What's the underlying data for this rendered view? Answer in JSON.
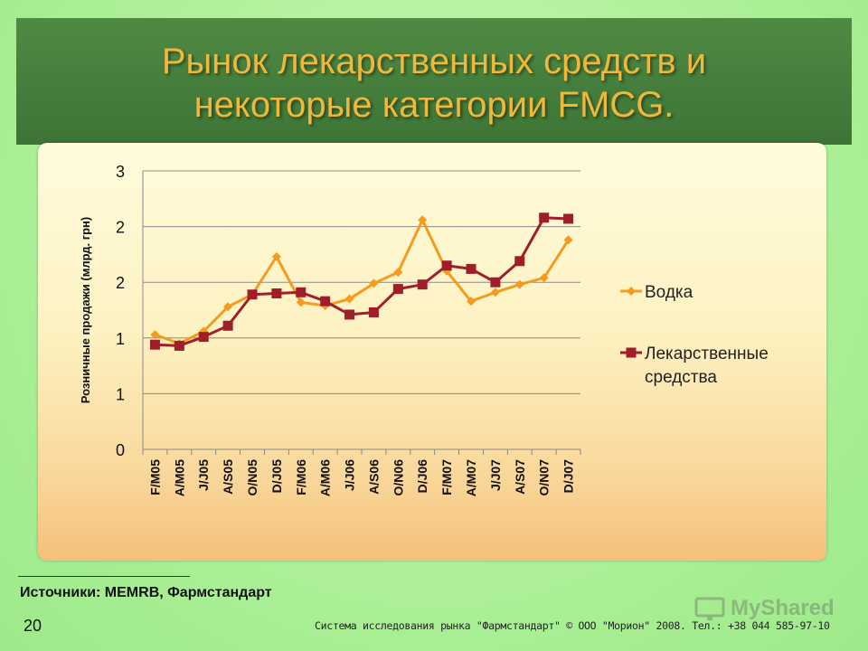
{
  "slide": {
    "title_line1": "Рынок лекарственных средств и",
    "title_line2": "некоторые категории  FMCG.",
    "source": "Источники: MEMRB, Фармстандарт",
    "page_number": "20",
    "copyright": "Система исследования рынка \"Фармстандарт\" © ООО \"Морион\" 2008. Тел.: +38 044 585-97-10",
    "watermark": "MyShared",
    "colors": {
      "header": "#3d7436",
      "title": "#f0b83a",
      "background": "#b9f2a6"
    }
  },
  "chart_data": {
    "type": "line",
    "title": "",
    "xlabel": "",
    "ylabel": "Розничные продажи (млрд. грн)",
    "yticks": [
      {
        "value": 0,
        "label": "0"
      },
      {
        "value": 0.5,
        "label": "1"
      },
      {
        "value": 1,
        "label": "1"
      },
      {
        "value": 1.5,
        "label": "2"
      },
      {
        "value": 2,
        "label": "2"
      },
      {
        "value": 2.5,
        "label": "3"
      }
    ],
    "ylim": [
      0,
      2.5
    ],
    "grid": true,
    "legend_position": "right",
    "categories": [
      "F/M05",
      "A/M05",
      "J/J05",
      "A/S05",
      "O/N05",
      "D/J05",
      "F/M06",
      "A/M06",
      "J/J06",
      "A/S06",
      "O/N06",
      "D/J06",
      "F/M07",
      "A/M07",
      "J/J07",
      "A/S07",
      "O/N07",
      "D/J07"
    ],
    "series": [
      {
        "name": "Водка",
        "color": "#f39c1e",
        "marker": "diamond",
        "values": [
          1.03,
          0.95,
          1.06,
          1.28,
          1.39,
          1.73,
          1.32,
          1.29,
          1.35,
          1.49,
          1.59,
          2.06,
          1.6,
          1.33,
          1.41,
          1.48,
          1.54,
          1.88
        ]
      },
      {
        "name": "Лекарственные средства",
        "color": "#a01e2a",
        "marker": "square",
        "values": [
          0.94,
          0.93,
          1.01,
          1.11,
          1.39,
          1.4,
          1.41,
          1.33,
          1.21,
          1.23,
          1.44,
          1.48,
          1.65,
          1.62,
          1.5,
          1.69,
          2.08,
          2.07
        ]
      }
    ]
  }
}
